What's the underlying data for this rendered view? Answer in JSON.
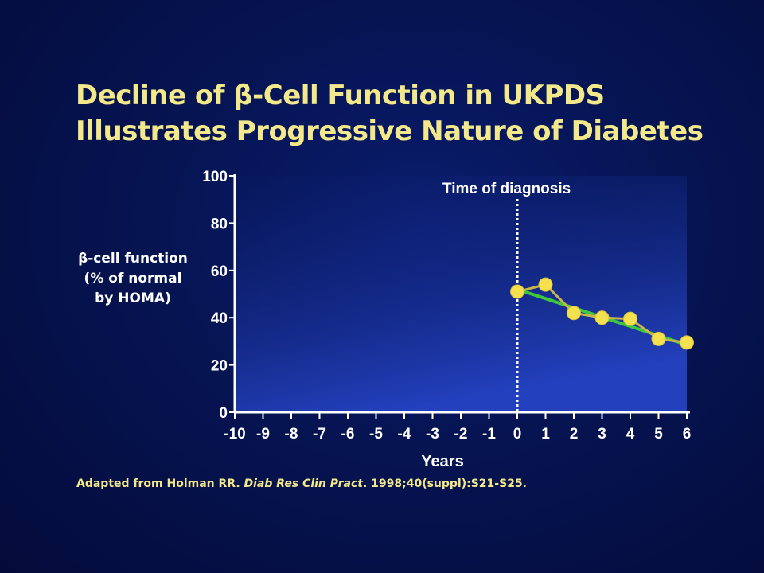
{
  "slide": {
    "title_line1": "Decline of β-Cell Function in UKPDS",
    "title_line2": "Illustrates Progressive Nature of Diabetes",
    "ylabel_line1": "β-cell function",
    "ylabel_line2": "(% of normal",
    "ylabel_line3": "by HOMA)",
    "source_prefix": "Adapted from Holman RR. ",
    "source_journal": "Diab Res Clin Pract",
    "source_suffix": ". 1998;40(suppl):S21-S25."
  },
  "colors": {
    "background": "#050a3c",
    "title": "#f3e98a",
    "axis": "#ffffff",
    "points": "#f5e050",
    "trend": "#3fc83f"
  },
  "chart_data": {
    "type": "line",
    "title": "Decline of β-Cell Function in UKPDS Illustrates Progressive Nature of Diabetes",
    "xlabel": "Years",
    "ylabel": "β-cell function (% of normal by HOMA)",
    "xlim": [
      -10,
      6
    ],
    "ylim": [
      0,
      100
    ],
    "x_ticks": [
      -10,
      -9,
      -8,
      -7,
      -6,
      -5,
      -4,
      -3,
      -2,
      -1,
      0,
      1,
      2,
      3,
      4,
      5,
      6
    ],
    "y_ticks": [
      0,
      20,
      40,
      60,
      80,
      100
    ],
    "series": [
      {
        "x": [
          0,
          1,
          2,
          3,
          4,
          5,
          6
        ],
        "y": [
          51,
          54,
          42,
          40,
          39.5,
          31,
          29.5
        ]
      }
    ],
    "trendline": {
      "x": [
        0,
        6
      ],
      "y": [
        52,
        28.5
      ]
    },
    "annotations": [
      {
        "text": "Time of diagnosis",
        "x": 0
      }
    ],
    "grid": false
  }
}
